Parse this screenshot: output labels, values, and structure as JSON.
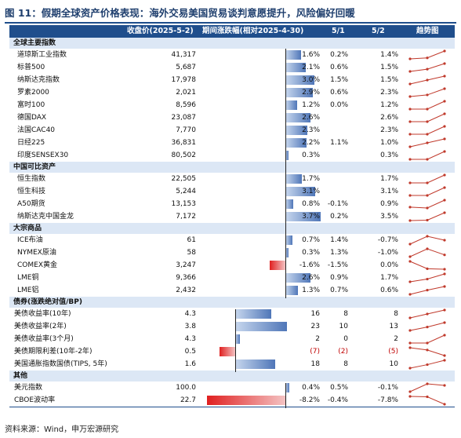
{
  "title": "图 11：假期全球资产价格表现：海外交易美国贸易谈判意愿提升，风险偏好回暖",
  "source": "资料来源：Wind，申万宏源研究",
  "header": {
    "close": "收盘价(2025-5-2)",
    "period": "期间涨跌幅(相对2025-4-30)",
    "d1": "5/1",
    "d2": "5/2",
    "trend": "趋势图"
  },
  "colors": {
    "navy": "#1f4e8c",
    "bar_pos": "#4f76b8",
    "bar_neg": "#e02020",
    "spark": "#c0392b"
  },
  "sections": [
    {
      "label": "全球主要指数",
      "rows": [
        {
          "name": "道琼斯工业指数",
          "close": "41,317",
          "chg": "1.6%",
          "v": 1.6,
          "d1": "0.2%",
          "d2": "1.4%",
          "spark": [
            0,
            0.2,
            1.6
          ]
        },
        {
          "name": "标普500",
          "close": "5,687",
          "chg": "2.1%",
          "v": 2.1,
          "d1": "0.6%",
          "d2": "1.5%",
          "spark": [
            0,
            0.6,
            2.1
          ]
        },
        {
          "name": "纳斯达克指数",
          "close": "17,978",
          "chg": "3.0%",
          "v": 3.0,
          "d1": "1.5%",
          "d2": "1.5%",
          "spark": [
            0,
            1.5,
            3.0
          ]
        },
        {
          "name": "罗素2000",
          "close": "2,021",
          "chg": "2.9%",
          "v": 2.9,
          "d1": "0.6%",
          "d2": "2.3%",
          "spark": [
            0,
            0.6,
            2.9
          ]
        },
        {
          "name": "富时100",
          "close": "8,596",
          "chg": "1.2%",
          "v": 1.2,
          "d1": "0.0%",
          "d2": "1.2%",
          "spark": [
            0,
            0,
            1.2
          ]
        },
        {
          "name": "德国DAX",
          "close": "23,087",
          "chg": "2.6%",
          "v": 2.6,
          "d1": "",
          "d2": "2.6%",
          "spark": [
            0,
            0,
            2.6
          ]
        },
        {
          "name": "法国CAC40",
          "close": "7,770",
          "chg": "2.3%",
          "v": 2.3,
          "d1": "",
          "d2": "2.3%",
          "spark": [
            0,
            0,
            2.3
          ]
        },
        {
          "name": "日经225",
          "close": "36,831",
          "chg": "2.2%",
          "v": 2.2,
          "d1": "1.1%",
          "d2": "1.0%",
          "spark": [
            0,
            1.1,
            2.2
          ]
        },
        {
          "name": "印度SENSEX30",
          "close": "80,502",
          "chg": "0.3%",
          "v": 0.3,
          "d1": "",
          "d2": "0.3%",
          "spark": [
            0,
            0,
            0.3
          ]
        }
      ]
    },
    {
      "label": "中国可比资产",
      "rows": [
        {
          "name": "恒生指数",
          "close": "22,505",
          "chg": "1.7%",
          "v": 1.7,
          "d1": "",
          "d2": "1.7%",
          "spark": [
            0,
            0,
            1.7
          ]
        },
        {
          "name": "恒生科技",
          "close": "5,244",
          "chg": "3.1%",
          "v": 3.1,
          "d1": "",
          "d2": "3.1%",
          "spark": [
            0,
            0,
            3.1
          ]
        },
        {
          "name": "A50期货",
          "close": "13,153",
          "chg": "0.8%",
          "v": 0.8,
          "d1": "-0.1%",
          "d2": "0.9%",
          "spark": [
            0,
            -0.1,
            0.8
          ]
        },
        {
          "name": "纳斯达克中国金龙",
          "close": "7,172",
          "chg": "3.7%",
          "v": 3.7,
          "d1": "0.2%",
          "d2": "3.5%",
          "spark": [
            0,
            0.2,
            3.7
          ]
        }
      ]
    },
    {
      "label": "大宗商品",
      "rows": [
        {
          "name": "ICE布油",
          "close": "61",
          "chg": "0.7%",
          "v": 0.7,
          "d1": "1.4%",
          "d2": "-0.7%",
          "spark": [
            0,
            1.4,
            0.7
          ]
        },
        {
          "name": "NYMEX原油",
          "close": "58",
          "chg": "0.3%",
          "v": 0.3,
          "d1": "1.3%",
          "d2": "-1.0%",
          "spark": [
            0,
            1.3,
            0.3
          ]
        },
        {
          "name": "COMEX黄金",
          "close": "3,247",
          "chg": "-1.6%",
          "v": -1.6,
          "d1": "-1.5%",
          "d2": "0.0%",
          "spark": [
            0,
            -1.5,
            -1.6
          ]
        },
        {
          "name": "LME铜",
          "close": "9,366",
          "chg": "2.6%",
          "v": 2.6,
          "d1": "0.9%",
          "d2": "1.7%",
          "spark": [
            0,
            0.9,
            2.6
          ]
        },
        {
          "name": "LME铝",
          "close": "2,432",
          "chg": "1.3%",
          "v": 1.3,
          "d1": "0.7%",
          "d2": "0.6%",
          "spark": [
            0,
            0.7,
            1.3
          ]
        }
      ]
    },
    {
      "label": "债券(涨跌绝对值/BP)",
      "rows": [
        {
          "name": "美债收益率(10年)",
          "close": "4.3",
          "chg": "16",
          "v": 16,
          "d1": "8",
          "d2": "8",
          "bp": true,
          "spark": [
            0,
            8,
            16
          ]
        },
        {
          "name": "美债收益率(2年)",
          "close": "3.8",
          "chg": "23",
          "v": 23,
          "d1": "10",
          "d2": "13",
          "bp": true,
          "spark": [
            0,
            10,
            23
          ]
        },
        {
          "name": "美债收益率(3个月)",
          "close": "4.3",
          "chg": "2",
          "v": 2,
          "d1": "0",
          "d2": "2",
          "bp": true,
          "spark": [
            0,
            0,
            2
          ]
        },
        {
          "name": "美债期限利差(10年-2年)",
          "close": "0.5",
          "chg": "(7)",
          "v": -7,
          "d1": "(2)",
          "d2": "(5)",
          "bp": true,
          "red": true,
          "spark": [
            0,
            -2,
            -7
          ]
        },
        {
          "name": "美国通胀指数国债(TIPS, 5年)",
          "close": "1.6",
          "chg": "18",
          "v": 18,
          "d1": "8",
          "d2": "10",
          "bp": true,
          "spark": [
            0,
            8,
            18
          ]
        }
      ]
    },
    {
      "label": "其他",
      "rows": [
        {
          "name": "美元指数",
          "close": "100.0",
          "chg": "0.4%",
          "v": 0.4,
          "d1": "0.5%",
          "d2": "-0.1%",
          "spark": [
            0,
            0.5,
            0.4
          ]
        },
        {
          "name": "CBOE波动率",
          "close": "22.7",
          "chg": "-8.2%",
          "v": -8.2,
          "d1": "-0.4%",
          "d2": "-7.8%",
          "spark": [
            0,
            -0.4,
            -8.2
          ]
        }
      ]
    }
  ]
}
